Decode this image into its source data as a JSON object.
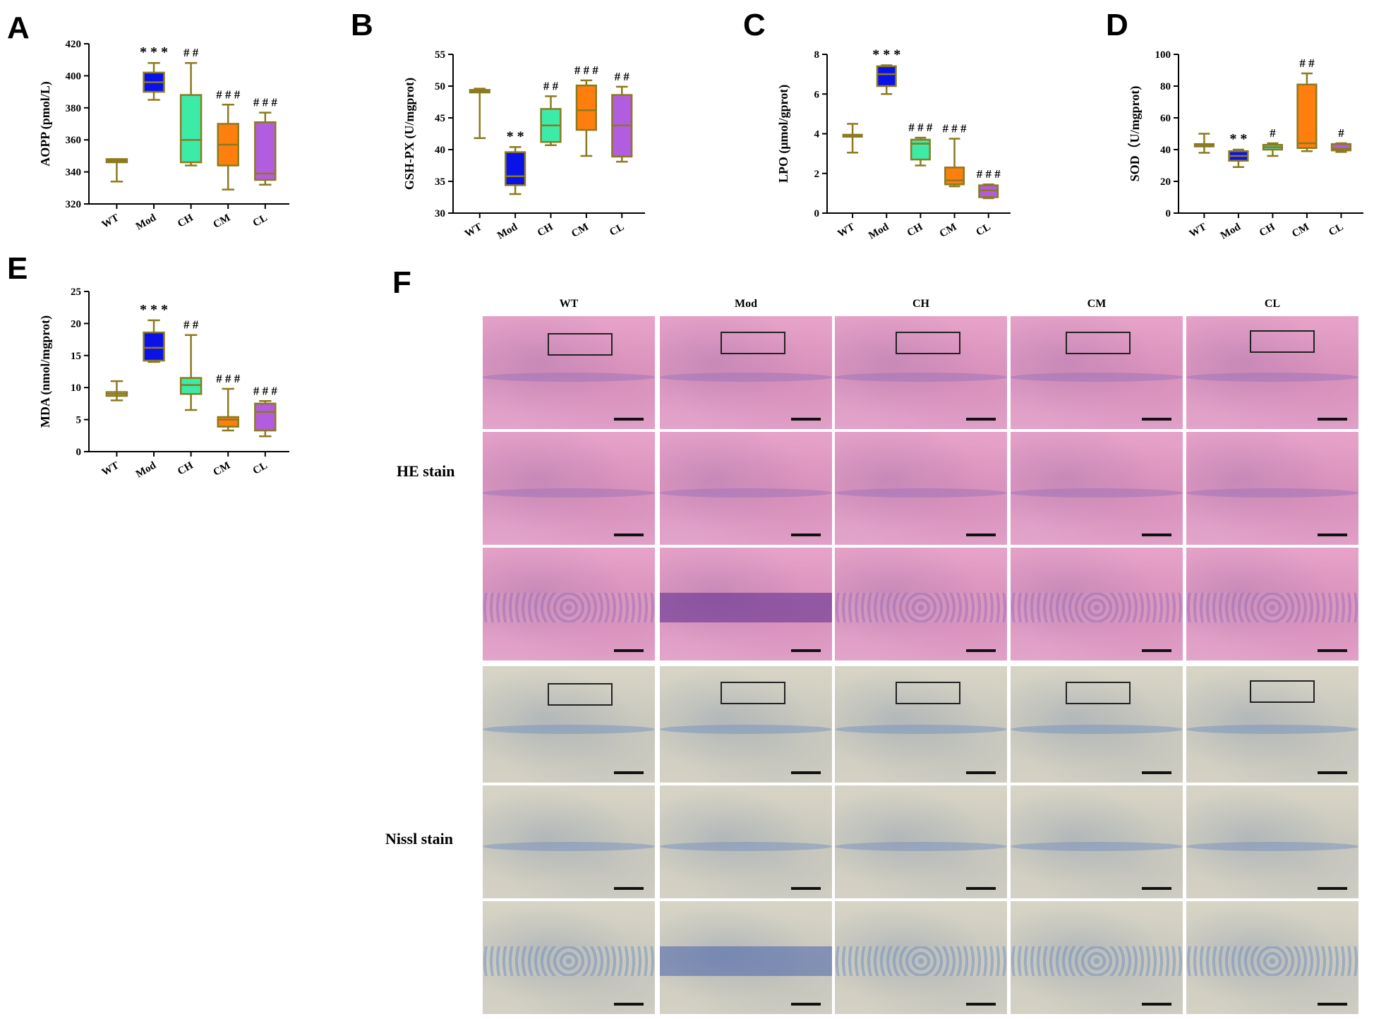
{
  "panels": [
    {
      "letter": "A",
      "chart_data": {
        "type": "box",
        "ylabel": "AOPP (pmol/L)",
        "ylim": [
          320,
          420
        ],
        "yticks": [
          320,
          340,
          360,
          380,
          400,
          420
        ],
        "categories": [
          "WT",
          "Mod",
          "CH",
          "CM",
          "CL"
        ],
        "colors": [
          "#8B7A1E",
          "#0A12E8",
          "#3DEBA9",
          "#FF7F0E",
          "#B25CE0"
        ],
        "boxes": [
          {
            "min": 334,
            "q1": 346,
            "median": 347,
            "q3": 348,
            "max": 348
          },
          {
            "min": 385,
            "q1": 390,
            "median": 396,
            "q3": 402,
            "max": 408
          },
          {
            "min": 344,
            "q1": 346,
            "median": 360,
            "q3": 388,
            "max": 408
          },
          {
            "min": 329,
            "q1": 344,
            "median": 357,
            "q3": 370,
            "max": 382
          },
          {
            "min": 332,
            "q1": 335,
            "median": 339,
            "q3": 371,
            "max": 377
          }
        ],
        "annotations": [
          "",
          "* * *",
          "# #",
          "# # #",
          "# # #"
        ]
      }
    },
    {
      "letter": "B",
      "chart_data": {
        "type": "box",
        "ylabel": "GSH-PX (U/mgprot)",
        "ylim": [
          30,
          55
        ],
        "yticks": [
          30,
          35,
          40,
          45,
          50,
          55
        ],
        "categories": [
          "WT",
          "Mod",
          "CH",
          "CM",
          "CL"
        ],
        "colors": [
          "#8B7A1E",
          "#0A12E8",
          "#3DEBA9",
          "#FF7F0E",
          "#B25CE0"
        ],
        "boxes": [
          {
            "min": 41.8,
            "q1": 49.0,
            "median": 49.2,
            "q3": 49.4,
            "max": 49.6
          },
          {
            "min": 33.0,
            "q1": 34.4,
            "median": 35.8,
            "q3": 39.6,
            "max": 40.4
          },
          {
            "min": 40.7,
            "q1": 41.2,
            "median": 43.8,
            "q3": 46.4,
            "max": 48.4
          },
          {
            "min": 39.0,
            "q1": 43.1,
            "median": 46.2,
            "q3": 50.1,
            "max": 50.9
          },
          {
            "min": 38.1,
            "q1": 38.9,
            "median": 43.8,
            "q3": 48.6,
            "max": 49.9
          }
        ],
        "annotations": [
          "",
          "* *",
          "# #",
          "# # #",
          "# #"
        ]
      }
    },
    {
      "letter": "C",
      "chart_data": {
        "type": "box",
        "ylabel": "LPO (μmol/gprot)",
        "ylim": [
          0,
          8
        ],
        "yticks": [
          0,
          2,
          4,
          6,
          8
        ],
        "categories": [
          "WT",
          "Mod",
          "CH",
          "CM",
          "CL"
        ],
        "colors": [
          "#8B7A1E",
          "#0A12E8",
          "#3DEBA9",
          "#FF7F0E",
          "#B25CE0"
        ],
        "boxes": [
          {
            "min": 3.05,
            "q1": 3.85,
            "median": 3.9,
            "q3": 3.95,
            "max": 4.5
          },
          {
            "min": 6.0,
            "q1": 6.4,
            "median": 7.0,
            "q3": 7.4,
            "max": 7.45
          },
          {
            "min": 2.4,
            "q1": 2.7,
            "median": 3.5,
            "q3": 3.7,
            "max": 3.8
          },
          {
            "min": 1.35,
            "q1": 1.45,
            "median": 1.65,
            "q3": 2.3,
            "max": 3.75
          },
          {
            "min": 0.75,
            "q1": 0.8,
            "median": 1.15,
            "q3": 1.4,
            "max": 1.45
          }
        ],
        "annotations": [
          "",
          "* * *",
          "# # #",
          "# # #",
          "# # #"
        ]
      }
    },
    {
      "letter": "D",
      "chart_data": {
        "type": "box",
        "ylabel": "SOD（U/mgprot)",
        "ylim": [
          0,
          100
        ],
        "yticks": [
          0,
          20,
          40,
          60,
          80,
          100
        ],
        "categories": [
          "WT",
          "Mod",
          "CH",
          "CM",
          "CL"
        ],
        "colors": [
          "#8B7A1E",
          "#0A12E8",
          "#3DEBA9",
          "#FF7F0E",
          "#B25CE0"
        ],
        "boxes": [
          {
            "min": 38,
            "q1": 42,
            "median": 43,
            "q3": 43.5,
            "max": 50
          },
          {
            "min": 29,
            "q1": 33,
            "median": 36,
            "q3": 39,
            "max": 40
          },
          {
            "min": 36,
            "q1": 40,
            "median": 41.5,
            "q3": 43,
            "max": 44
          },
          {
            "min": 39,
            "q1": 41,
            "median": 44,
            "q3": 81,
            "max": 88
          },
          {
            "min": 38.5,
            "q1": 39.5,
            "median": 40.5,
            "q3": 43.5,
            "max": 44
          }
        ],
        "annotations": [
          "",
          "* *",
          "#",
          "# #",
          "#"
        ]
      }
    },
    {
      "letter": "E",
      "chart_data": {
        "type": "box",
        "ylabel": "MDA (nmol/mgprot)",
        "ylim": [
          0,
          25
        ],
        "yticks": [
          0,
          5,
          10,
          15,
          20,
          25
        ],
        "categories": [
          "WT",
          "Mod",
          "CH",
          "CM",
          "CL"
        ],
        "colors": [
          "#8B7A1E",
          "#0A12E8",
          "#3DEBA9",
          "#FF7F0E",
          "#B25CE0"
        ],
        "boxes": [
          {
            "min": 8.0,
            "q1": 8.7,
            "median": 9.0,
            "q3": 9.3,
            "max": 11.0
          },
          {
            "min": 14.0,
            "q1": 14.2,
            "median": 16.2,
            "q3": 18.6,
            "max": 20.5
          },
          {
            "min": 6.5,
            "q1": 9.0,
            "median": 10.4,
            "q3": 11.5,
            "max": 18.2
          },
          {
            "min": 3.3,
            "q1": 3.9,
            "median": 5.0,
            "q3": 5.4,
            "max": 9.8
          },
          {
            "min": 2.4,
            "q1": 3.3,
            "median": 6.2,
            "q3": 7.5,
            "max": 7.9
          }
        ],
        "annotations": [
          "",
          "* * *",
          "# #",
          "# # #",
          "# # #"
        ]
      }
    }
  ],
  "histology": {
    "letter": "F",
    "groups": [
      "WT",
      "Mod",
      "CH",
      "CM",
      "CL"
    ],
    "he_label": "HE stain",
    "nissl_label": "Nissl stain"
  }
}
